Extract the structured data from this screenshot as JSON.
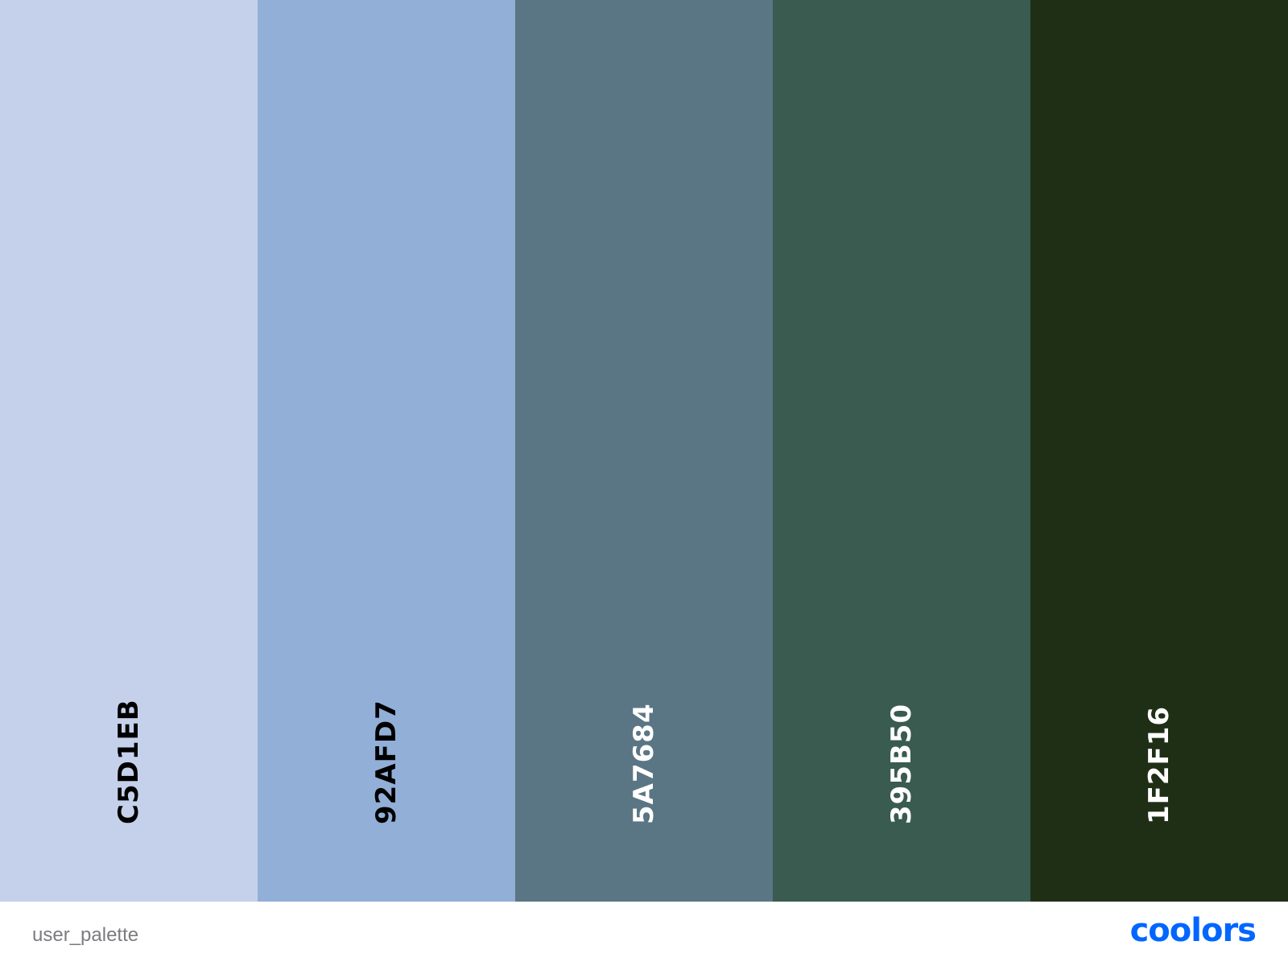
{
  "palette": {
    "swatches": [
      {
        "code": "C5D1EB",
        "color": "#C5D1EB",
        "text_color": "#000000"
      },
      {
        "code": "92AFD7",
        "color": "#92AFD7",
        "text_color": "#000000"
      },
      {
        "code": "5A7684",
        "color": "#5A7684",
        "text_color": "#ffffff"
      },
      {
        "code": "395B50",
        "color": "#395B50",
        "text_color": "#ffffff"
      },
      {
        "code": "1F2F16",
        "color": "#1F2F16",
        "text_color": "#ffffff"
      }
    ]
  },
  "footer": {
    "palette_name": "user_palette",
    "brand": "coolors",
    "brand_color": "#0066ff"
  }
}
